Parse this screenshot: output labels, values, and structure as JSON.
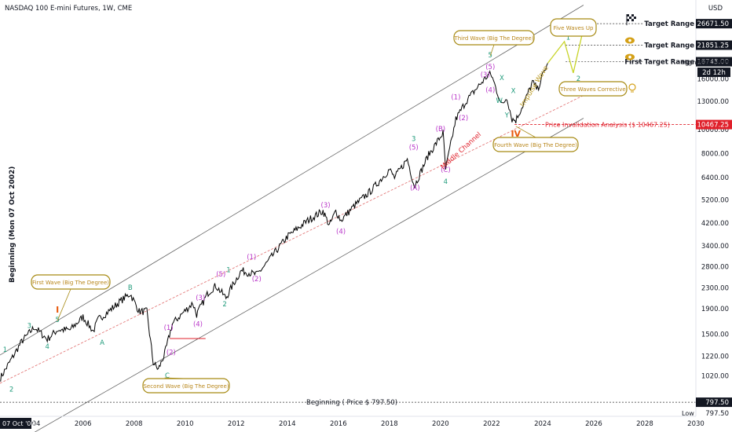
{
  "header": {
    "title": "NASDAQ 100 E-mini Futures, 1W, CME",
    "currency": "USD"
  },
  "y_axis_title": "Beginning (Mon 07 Oct 2002)",
  "colors": {
    "wave_green": "#1e9a7a",
    "wave_purple": "#b833c8",
    "wave_orange": "#e8590c",
    "annotation_border": "#a78a13",
    "invalidation_red": "#e0202b",
    "price": "#000000",
    "channel": "#555555"
  },
  "chart_data": {
    "type": "line",
    "title": "NASDAQ 100 E-mini Futures, 1W, CME",
    "y_scale": "log",
    "ylim": [
      700,
      30000
    ],
    "xlim": [
      2002.75,
      2030
    ],
    "x_ticks": [
      "2004",
      "2006",
      "2008",
      "2010",
      "2012",
      "2014",
      "2016",
      "2018",
      "2020",
      "2022",
      "2024",
      "2026",
      "2028",
      "2030"
    ],
    "x_ticks_values": [
      2004,
      2006,
      2008,
      2010,
      2012,
      2014,
      2016,
      2018,
      2020,
      2022,
      2024,
      2026,
      2028,
      2030
    ],
    "first_x_label": "07 Oct '02",
    "y_ticks": [
      "16000.00",
      "13000.00",
      "10000.00",
      "8000.00",
      "6400.00",
      "5200.00",
      "4200.00",
      "3400.00",
      "2800.00",
      "2300.00",
      "1900.00",
      "1500.00",
      "1220.00",
      "1020.00"
    ],
    "y_ticks_values": [
      16000,
      13000,
      10000,
      8000,
      6400,
      5200,
      4200,
      3400,
      2800,
      2300,
      1900,
      1500,
      1220,
      1020
    ],
    "price_series": {
      "name": "NQ1!",
      "x": [
        2002.77,
        2003.2,
        2003.6,
        2004.1,
        2004.6,
        2005.0,
        2005.5,
        2006.0,
        2006.4,
        2006.6,
        2007.0,
        2007.5,
        2007.85,
        2008.2,
        2008.5,
        2008.75,
        2008.95,
        2009.2,
        2009.5,
        2009.9,
        2010.3,
        2010.45,
        2010.9,
        2011.2,
        2011.6,
        2011.9,
        2012.2,
        2012.8,
        2013.2,
        2014.0,
        2014.8,
        2015.4,
        2015.65,
        2015.9,
        2016.1,
        2016.6,
        2017.3,
        2018.0,
        2018.2,
        2018.7,
        2018.98,
        2019.5,
        2020.1,
        2020.2,
        2020.6,
        2021.0,
        2021.5,
        2021.9,
        2022.0,
        2022.4,
        2022.6,
        2022.8,
        2022.95,
        2023.3,
        2023.6,
        2023.8,
        2024.0,
        2024.2
      ],
      "y": [
        1000,
        1190,
        1400,
        1600,
        1430,
        1560,
        1560,
        1760,
        1540,
        1720,
        1850,
        2050,
        2180,
        1850,
        1850,
        1150,
        1080,
        1250,
        1650,
        1820,
        2000,
        1800,
        2200,
        2350,
        2100,
        2400,
        2700,
        2600,
        2900,
        3700,
        4300,
        4700,
        4100,
        4700,
        4300,
        4900,
        5700,
        6900,
        6400,
        7600,
        5900,
        7800,
        9700,
        6900,
        11000,
        13000,
        15000,
        16700,
        16500,
        12500,
        13500,
        11000,
        10900,
        13000,
        15500,
        14500,
        16500,
        18500
      ]
    },
    "target_ranges": [
      {
        "label": "Target Range",
        "value": "26671.50"
      },
      {
        "label": "Target Range",
        "value": "21851.25"
      },
      {
        "label": "First Target Range",
        "value": "18745.00"
      }
    ],
    "axis_tags": {
      "high_label": "High",
      "high_value": "18709.00",
      "countdown": "2d 12h",
      "invalidation_value": "10467.25",
      "beginning_value": "797.50",
      "low_label": "Low",
      "low_value": "797.50"
    },
    "reference_lines": {
      "invalidation_label": "Price Invalidation Analysis ($ 10467.25)",
      "invalidation_value": 10467.25,
      "beginning_label": "Beginning ( Price $ 797.50)",
      "beginning_value": 797.5
    },
    "annotations": [
      {
        "text": "First Wave (Big The Degree)"
      },
      {
        "text": "Second Wave (Big The Degree)"
      },
      {
        "text": "Third Wave (Big The Degree)"
      },
      {
        "text": "Fourth Wave (Big The Degree)"
      },
      {
        "text": "Five Waves Up"
      },
      {
        "text": "Three Waves Corrective"
      }
    ],
    "channel_labels": [
      "Middle Channel",
      "Impulse Wave"
    ],
    "wave_labels": [
      {
        "t": "1",
        "c": "g",
        "x": 2002.95,
        "y": 1270
      },
      {
        "t": "2",
        "c": "g",
        "x": 2003.2,
        "y": 880
      },
      {
        "t": "3",
        "c": "g",
        "x": 2003.9,
        "y": 1590
      },
      {
        "t": "4",
        "c": "g",
        "x": 2004.6,
        "y": 1310
      },
      {
        "t": "5",
        "c": "g",
        "x": 2005.0,
        "y": 1680
      },
      {
        "t": "I",
        "c": "o",
        "x": 2005.0,
        "y": 1830
      },
      {
        "t": "A",
        "c": "g",
        "x": 2006.75,
        "y": 1360
      },
      {
        "t": "B",
        "c": "g",
        "x": 2007.85,
        "y": 2260
      },
      {
        "t": "C",
        "c": "g",
        "x": 2009.3,
        "y": 1000
      },
      {
        "t": "II",
        "c": "o",
        "x": 2009.25,
        "y": 935
      },
      {
        "t": "(1)",
        "c": "p",
        "x": 2009.35,
        "y": 1560
      },
      {
        "t": "(2)",
        "c": "p",
        "x": 2009.45,
        "y": 1240
      },
      {
        "t": "(3)",
        "c": "p",
        "x": 2010.6,
        "y": 2060
      },
      {
        "t": "(4)",
        "c": "p",
        "x": 2010.5,
        "y": 1610
      },
      {
        "t": "(5)",
        "c": "p",
        "x": 2011.4,
        "y": 2560
      },
      {
        "t": "1",
        "c": "g",
        "x": 2011.7,
        "y": 2660
      },
      {
        "t": "2",
        "c": "g",
        "x": 2011.55,
        "y": 1940
      },
      {
        "t": "(1)",
        "c": "p",
        "x": 2012.6,
        "y": 3000
      },
      {
        "t": "(2)",
        "c": "p",
        "x": 2012.8,
        "y": 2450
      },
      {
        "t": "(3)",
        "c": "p",
        "x": 2015.5,
        "y": 4850
      },
      {
        "t": "(4)",
        "c": "p",
        "x": 2016.1,
        "y": 3800
      },
      {
        "t": "3",
        "c": "g",
        "x": 2018.95,
        "y": 9000
      },
      {
        "t": "(5)",
        "c": "p",
        "x": 2018.95,
        "y": 8300
      },
      {
        "t": "(A)",
        "c": "p",
        "x": 2019.0,
        "y": 5700
      },
      {
        "t": "(B)",
        "c": "p",
        "x": 2020.0,
        "y": 9850
      },
      {
        "t": "(C)",
        "c": "p",
        "x": 2020.2,
        "y": 6750
      },
      {
        "t": "4",
        "c": "g",
        "x": 2020.2,
        "y": 6050
      },
      {
        "t": "(1)",
        "c": "p",
        "x": 2020.6,
        "y": 13200
      },
      {
        "t": "(2)",
        "c": "p",
        "x": 2020.9,
        "y": 10900
      },
      {
        "t": "(3)",
        "c": "p",
        "x": 2021.75,
        "y": 16300
      },
      {
        "t": "(4)",
        "c": "p",
        "x": 2021.95,
        "y": 14100
      },
      {
        "t": "(5)",
        "c": "p",
        "x": 2021.95,
        "y": 17500
      },
      {
        "t": "5",
        "c": "g",
        "x": 2021.95,
        "y": 19500
      },
      {
        "t": "III",
        "c": "o",
        "x": 2021.95,
        "y": 22200
      },
      {
        "t": "X",
        "c": "g",
        "x": 2022.4,
        "y": 15800
      },
      {
        "t": "W",
        "c": "g",
        "x": 2022.3,
        "y": 12800
      },
      {
        "t": "X",
        "c": "g",
        "x": 2022.85,
        "y": 14000
      },
      {
        "t": "Y",
        "c": "g",
        "x": 2022.6,
        "y": 11200
      },
      {
        "t": "IV",
        "c": "o",
        "x": 2022.95,
        "y": 9350
      },
      {
        "t": "1",
        "c": "g",
        "x": 2025.0,
        "y": 23000
      },
      {
        "t": "2",
        "c": "g",
        "x": 2025.4,
        "y": 15700
      }
    ]
  }
}
